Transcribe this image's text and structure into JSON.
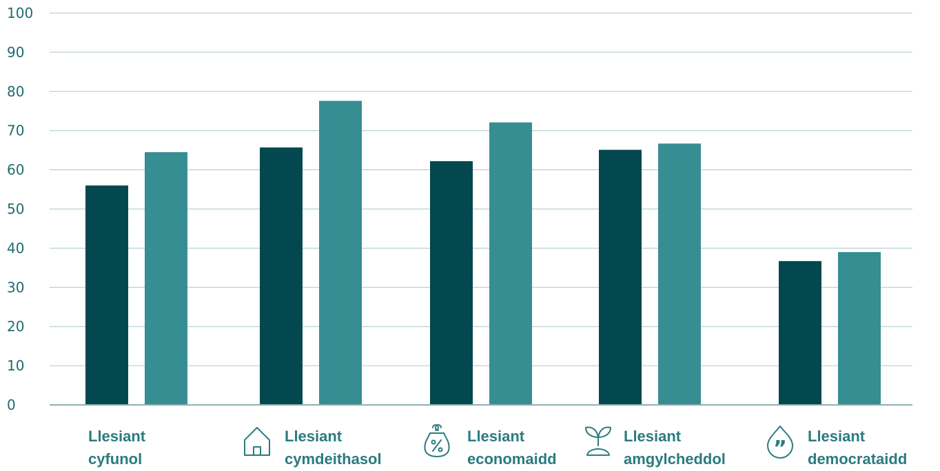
{
  "chart_data": {
    "type": "bar",
    "categories": [
      {
        "line1": "Llesiant",
        "line2": "cyfunol",
        "icon": ""
      },
      {
        "line1": "Llesiant",
        "line2": "cymdeithasol",
        "icon": "house-icon"
      },
      {
        "line1": "Llesiant",
        "line2": "economaidd",
        "icon": "percent-purse-icon"
      },
      {
        "line1": "Llesiant",
        "line2": "amgylcheddol",
        "icon": "sprout-icon"
      },
      {
        "line1": "Llesiant",
        "line2": "democrataidd",
        "icon": "quote-drop-icon"
      }
    ],
    "series": [
      {
        "values": [
          56,
          65.7,
          62.2,
          65.1,
          36.7
        ],
        "color": "#03484f"
      },
      {
        "values": [
          64.5,
          77.6,
          72.1,
          66.7,
          39
        ],
        "color": "#368e93"
      }
    ],
    "ylim": [
      0,
      100
    ],
    "yticks": [
      "0",
      "10",
      "20",
      "30",
      "40",
      "50",
      "60",
      "70",
      "80",
      "90",
      "100"
    ],
    "grid": true,
    "gridColor": "#a9c6c9",
    "axisColor": "#8fb0b3",
    "labelColor": "#2a7b80",
    "tickColor": "#1f6b6f"
  }
}
